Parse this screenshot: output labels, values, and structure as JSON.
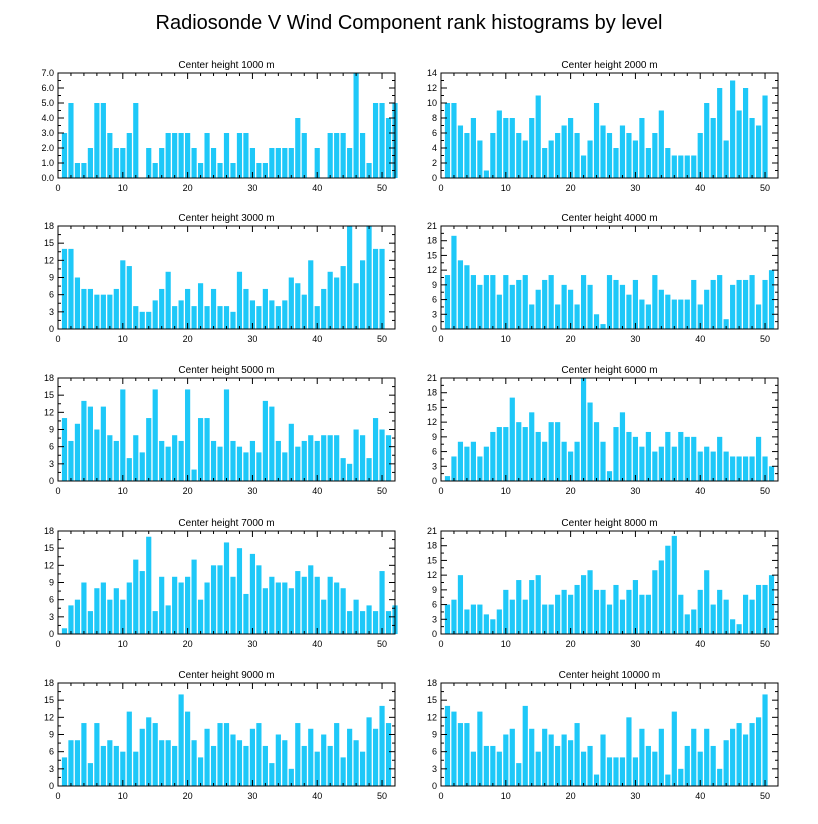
{
  "figure": {
    "title": "Radiosonde V Wind Component rank histograms by level",
    "bar_color": "#1ec8f8"
  },
  "chart_data": [
    {
      "type": "bar",
      "title": "Center height 1000 m",
      "xlim": [
        0,
        52
      ],
      "ylim": [
        0,
        7
      ],
      "yticks": [
        0,
        1,
        2,
        3,
        4,
        5,
        6,
        7
      ],
      "ytick_labels": [
        "0.0",
        "1.0",
        "2.0",
        "3.0",
        "4.0",
        "5.0",
        "6.0",
        "7.0"
      ],
      "xticks": [
        0,
        10,
        20,
        30,
        40,
        50
      ],
      "values": [
        0,
        3,
        5,
        1,
        1,
        2,
        5,
        5,
        3,
        2,
        2,
        3,
        5,
        0,
        2,
        1,
        2,
        3,
        3,
        3,
        3,
        2,
        1,
        3,
        2,
        1,
        3,
        1,
        3,
        3,
        2,
        1,
        1,
        2,
        2,
        2,
        2,
        4,
        3,
        0,
        2,
        0,
        3,
        3,
        3,
        2,
        7,
        3,
        1,
        5,
        5,
        4,
        5
      ]
    },
    {
      "type": "bar",
      "title": "Center height 2000 m",
      "xlim": [
        0,
        52
      ],
      "ylim": [
        0,
        14
      ],
      "yticks": [
        0,
        2,
        4,
        6,
        8,
        10,
        12,
        14
      ],
      "ytick_labels": [
        "0",
        "2",
        "4",
        "6",
        "8",
        "10",
        "12",
        "14"
      ],
      "xticks": [
        0,
        10,
        20,
        30,
        40,
        50
      ],
      "values": [
        0,
        10,
        10,
        7,
        6,
        8,
        5,
        1,
        6,
        9,
        8,
        8,
        6,
        5,
        8,
        11,
        4,
        5,
        6,
        7,
        8,
        6,
        3,
        5,
        10,
        7,
        6,
        4,
        7,
        6,
        5,
        8,
        4,
        6,
        9,
        4,
        3,
        3,
        3,
        3,
        6,
        10,
        8,
        12,
        5,
        13,
        9,
        12,
        8,
        7,
        11
      ]
    },
    {
      "type": "bar",
      "title": "Center height 3000 m",
      "xlim": [
        0,
        52
      ],
      "ylim": [
        0,
        18
      ],
      "yticks": [
        0,
        3,
        6,
        9,
        12,
        15,
        18
      ],
      "ytick_labels": [
        "0",
        "3",
        "6",
        "9",
        "12",
        "15",
        "18"
      ],
      "xticks": [
        0,
        10,
        20,
        30,
        40,
        50
      ],
      "values": [
        0,
        14,
        14,
        9,
        7,
        7,
        6,
        6,
        6,
        7,
        12,
        11,
        4,
        3,
        3,
        5,
        7,
        10,
        4,
        5,
        7,
        4,
        8,
        4,
        7,
        4,
        4,
        3,
        10,
        7,
        5,
        4,
        7,
        5,
        4,
        5,
        9,
        8,
        6,
        12,
        4,
        7,
        10,
        9,
        11,
        18,
        8,
        12,
        18,
        14,
        14
      ]
    },
    {
      "type": "bar",
      "title": "Center height 4000 m",
      "xlim": [
        0,
        52
      ],
      "ylim": [
        0,
        21
      ],
      "yticks": [
        0,
        3,
        6,
        9,
        12,
        15,
        18,
        21
      ],
      "ytick_labels": [
        "0",
        "3",
        "6",
        "9",
        "12",
        "15",
        "18",
        "21"
      ],
      "xticks": [
        0,
        10,
        20,
        30,
        40,
        50
      ],
      "values": [
        0,
        11,
        19,
        14,
        13,
        11,
        9,
        11,
        11,
        7,
        11,
        9,
        10,
        11,
        5,
        8,
        10,
        11,
        5,
        9,
        8,
        5,
        11,
        9,
        3,
        1,
        11,
        10,
        9,
        7,
        10,
        6,
        5,
        11,
        8,
        7,
        6,
        6,
        6,
        10,
        5,
        8,
        10,
        11,
        2,
        9,
        10,
        10,
        11,
        5,
        10,
        12
      ]
    },
    {
      "type": "bar",
      "title": "Center height 5000 m",
      "xlim": [
        0,
        52
      ],
      "ylim": [
        0,
        18
      ],
      "yticks": [
        0,
        3,
        6,
        9,
        12,
        15,
        18
      ],
      "ytick_labels": [
        "0",
        "3",
        "6",
        "9",
        "12",
        "15",
        "18"
      ],
      "xticks": [
        0,
        10,
        20,
        30,
        40,
        50
      ],
      "values": [
        0,
        11,
        7,
        10,
        14,
        13,
        9,
        13,
        8,
        7,
        16,
        4,
        8,
        5,
        11,
        16,
        7,
        6,
        8,
        7,
        16,
        2,
        11,
        11,
        7,
        6,
        16,
        7,
        6,
        5,
        7,
        5,
        14,
        13,
        7,
        5,
        10,
        6,
        7,
        8,
        7,
        8,
        8,
        8,
        4,
        3,
        9,
        8,
        4,
        11,
        9,
        8
      ]
    },
    {
      "type": "bar",
      "title": "Center height 6000 m",
      "xlim": [
        0,
        52
      ],
      "ylim": [
        0,
        21
      ],
      "yticks": [
        0,
        3,
        6,
        9,
        12,
        15,
        18,
        21
      ],
      "ytick_labels": [
        "0",
        "3",
        "6",
        "9",
        "12",
        "15",
        "18",
        "21"
      ],
      "xticks": [
        0,
        10,
        20,
        30,
        40,
        50
      ],
      "values": [
        0,
        1,
        5,
        8,
        7,
        8,
        5,
        7,
        10,
        11,
        11,
        17,
        12,
        11,
        14,
        10,
        8,
        12,
        12,
        8,
        6,
        8,
        21,
        16,
        12,
        8,
        2,
        11,
        14,
        10,
        9,
        7,
        10,
        6,
        7,
        10,
        7,
        10,
        9,
        9,
        6,
        7,
        6,
        9,
        6,
        5,
        5,
        5,
        5,
        9,
        5,
        3
      ]
    },
    {
      "type": "bar",
      "title": "Center height 7000 m",
      "xlim": [
        0,
        52
      ],
      "ylim": [
        0,
        18
      ],
      "yticks": [
        0,
        3,
        6,
        9,
        12,
        15,
        18
      ],
      "ytick_labels": [
        "0",
        "3",
        "6",
        "9",
        "12",
        "15",
        "18"
      ],
      "xticks": [
        0,
        10,
        20,
        30,
        40,
        50
      ],
      "values": [
        0,
        1,
        5,
        6,
        9,
        4,
        8,
        9,
        6,
        8,
        6,
        9,
        13,
        11,
        17,
        4,
        10,
        5,
        10,
        9,
        10,
        13,
        6,
        9,
        12,
        12,
        16,
        10,
        15,
        7,
        14,
        12,
        8,
        10,
        9,
        9,
        8,
        11,
        10,
        12,
        10,
        6,
        10,
        9,
        8,
        4,
        6,
        4,
        5,
        4,
        11,
        4,
        5
      ]
    },
    {
      "type": "bar",
      "title": "Center height 8000 m",
      "xlim": [
        0,
        52
      ],
      "ylim": [
        0,
        21
      ],
      "yticks": [
        0,
        3,
        6,
        9,
        12,
        15,
        18,
        21
      ],
      "ytick_labels": [
        "0",
        "3",
        "6",
        "9",
        "12",
        "15",
        "18",
        "21"
      ],
      "xticks": [
        0,
        10,
        20,
        30,
        40,
        50
      ],
      "values": [
        0,
        6,
        7,
        12,
        5,
        6,
        6,
        4,
        3,
        5,
        9,
        7,
        11,
        7,
        11,
        12,
        6,
        6,
        8,
        9,
        8,
        10,
        12,
        13,
        9,
        9,
        6,
        10,
        7,
        9,
        11,
        8,
        8,
        13,
        15,
        18,
        20,
        8,
        4,
        5,
        9,
        13,
        6,
        9,
        7,
        3,
        2,
        8,
        7,
        10,
        10,
        12
      ]
    },
    {
      "type": "bar",
      "title": "Center height 9000 m",
      "xlim": [
        0,
        52
      ],
      "ylim": [
        0,
        18
      ],
      "yticks": [
        0,
        3,
        6,
        9,
        12,
        15,
        18
      ],
      "ytick_labels": [
        "0",
        "3",
        "6",
        "9",
        "12",
        "15",
        "18"
      ],
      "xticks": [
        0,
        10,
        20,
        30,
        40,
        50
      ],
      "values": [
        0,
        5,
        8,
        8,
        11,
        4,
        11,
        7,
        8,
        7,
        6,
        13,
        6,
        10,
        12,
        11,
        8,
        8,
        7,
        16,
        13,
        8,
        5,
        10,
        7,
        11,
        11,
        9,
        8,
        7,
        10,
        11,
        7,
        4,
        9,
        8,
        3,
        11,
        7,
        10,
        6,
        9,
        7,
        11,
        5,
        10,
        8,
        6,
        12,
        10,
        14,
        11
      ]
    },
    {
      "type": "bar",
      "title": "Center height 10000 m",
      "xlim": [
        0,
        52
      ],
      "ylim": [
        0,
        18
      ],
      "yticks": [
        0,
        3,
        6,
        9,
        12,
        15,
        18
      ],
      "ytick_labels": [
        "0",
        "3",
        "6",
        "9",
        "12",
        "15",
        "18"
      ],
      "xticks": [
        0,
        10,
        20,
        30,
        40,
        50
      ],
      "values": [
        0,
        14,
        13,
        11,
        11,
        6,
        13,
        7,
        7,
        6,
        9,
        10,
        4,
        14,
        10,
        6,
        10,
        9,
        7,
        9,
        8,
        11,
        6,
        7,
        2,
        9,
        5,
        5,
        5,
        12,
        5,
        10,
        7,
        6,
        10,
        2,
        13,
        3,
        7,
        10,
        6,
        10,
        7,
        3,
        8,
        10,
        11,
        9,
        11,
        12,
        16
      ]
    }
  ]
}
